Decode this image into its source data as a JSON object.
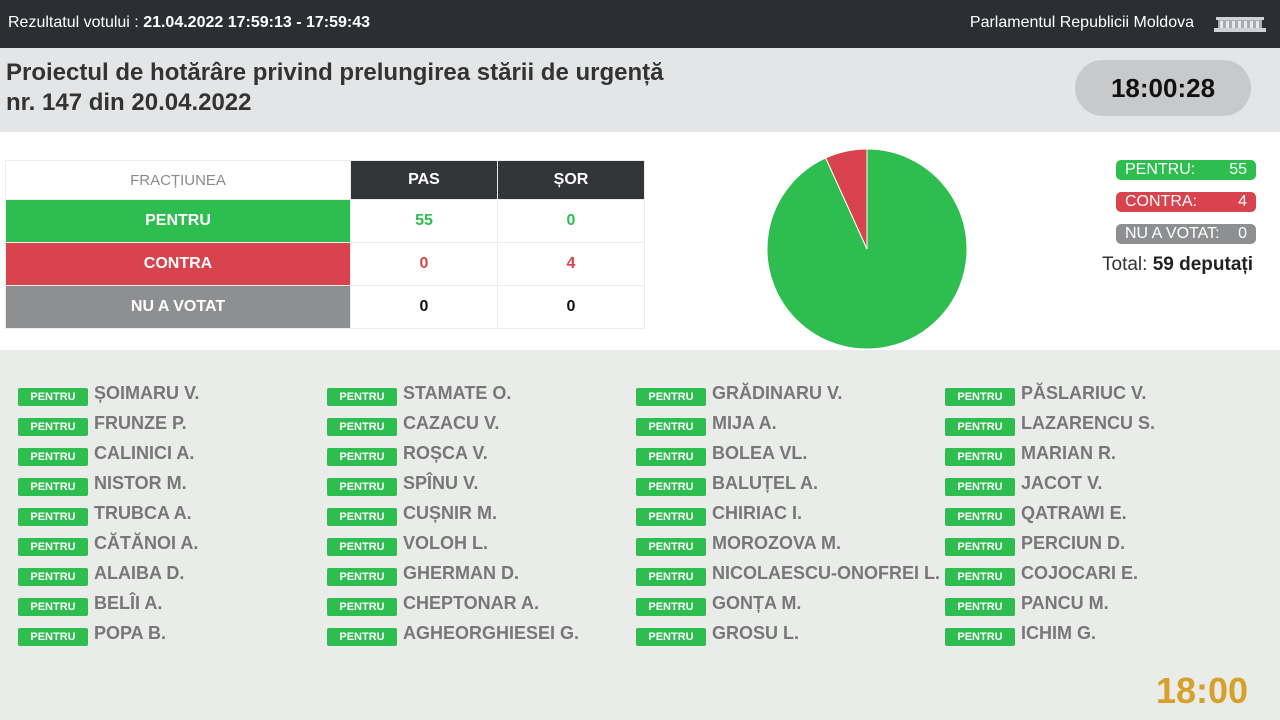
{
  "header": {
    "vote_label": "Rezultatul votului : ",
    "vote_time": "21.04.2022 17:59:13 - 17:59:43",
    "parliament": "Parlamentul Republicii Moldova",
    "logo_icon": "parliament-logo-icon"
  },
  "title": {
    "line1": "Proiectul de hotărâre privind prelungirea stării de urgență",
    "line2": "nr. 147 din 20.04.2022"
  },
  "clock": "18:00:28",
  "table": {
    "col_fraction": "FRACȚIUNEA",
    "col_pas": "PAS",
    "col_sor": "ȘOR",
    "rows": [
      {
        "label": "PENTRU",
        "pas": "55",
        "sor": "0"
      },
      {
        "label": "CONTRA",
        "pas": "0",
        "sor": "4"
      },
      {
        "label": "NU A VOTAT",
        "pas": "0",
        "sor": "0"
      }
    ]
  },
  "chart_data": {
    "type": "pie",
    "slices": [
      {
        "label": "PENTRU",
        "value": 55,
        "color": "#2ebd4f"
      },
      {
        "label": "CONTRA",
        "value": 4,
        "color": "#d8434d"
      },
      {
        "label": "NU A VOTAT",
        "value": 0,
        "color": "#8d8f91"
      }
    ]
  },
  "legend": {
    "pentru_label": "PENTRU:",
    "pentru_value": "55",
    "contra_label": "CONTRA:",
    "contra_value": "4",
    "nav_label": "NU A VOTAT:",
    "nav_value": "0",
    "total_label": "Total: ",
    "total_value": "59 deputați"
  },
  "badge_label": "PENTRU",
  "deputies": [
    [
      "ȘOIMARU V.",
      "FRUNZE P.",
      "CALINICI A.",
      "NISTOR M.",
      "TRUBCA A.",
      "CĂTĂNOI A.",
      "ALAIBA D.",
      "BELÎI A.",
      "POPA B."
    ],
    [
      "STAMATE O.",
      "CAZACU V.",
      "ROȘCA V.",
      "SPÎNU V.",
      "CUȘNIR M.",
      "VOLOH L.",
      "GHERMAN D.",
      "CHEPTONAR A.",
      "AGHEORGHIESEI G."
    ],
    [
      "GRĂDINARU V.",
      "MIJA A.",
      "BOLEA VL.",
      "BALUȚEL A.",
      "CHIRIAC I.",
      "MOROZOVA M.",
      "NICOLAESCU-ONOFREI L.",
      "GONȚA M.",
      "GROSU L."
    ],
    [
      "PĂSLARIUC V.",
      "LAZARENCU S.",
      "MARIAN R.",
      "JACOT V.",
      "QATRAWI E.",
      "PERCIUN D.",
      "COJOCARI E.",
      "PANCU M.",
      "ICHIM G."
    ]
  ],
  "clock_small": "18:00"
}
